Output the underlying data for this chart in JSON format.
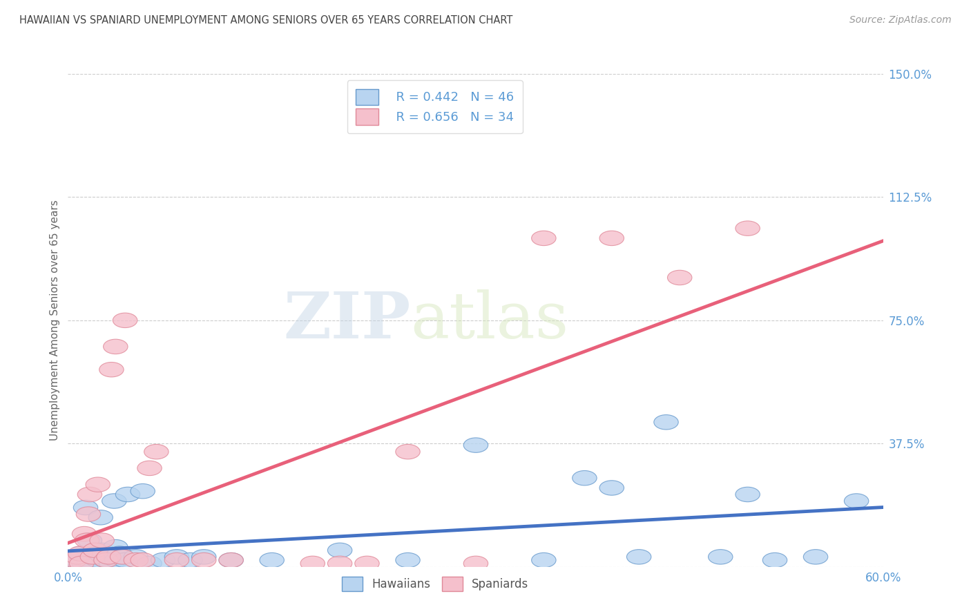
{
  "title": "HAWAIIAN VS SPANIARD UNEMPLOYMENT AMONG SENIORS OVER 65 YEARS CORRELATION CHART",
  "source": "Source: ZipAtlas.com",
  "ylabel": "Unemployment Among Seniors over 65 years",
  "xlim": [
    0.0,
    0.6
  ],
  "ylim": [
    0.0,
    1.5
  ],
  "yticks": [
    0.0,
    0.375,
    0.75,
    1.125,
    1.5
  ],
  "ytick_labels": [
    "",
    "37.5%",
    "75.0%",
    "112.5%",
    "150.0%"
  ],
  "xtick_labels": [
    "0.0%",
    "60.0%"
  ],
  "xticks": [
    0.0,
    0.6
  ],
  "hawaiian_fill": "#B8D4F0",
  "hawaiian_edge": "#6699CC",
  "spaniard_fill": "#F5C0CC",
  "spaniard_edge": "#E08898",
  "hawaiian_line": "#4472C4",
  "spaniard_line": "#E8607A",
  "legend_r_hawaiian": "R = 0.442",
  "legend_n_hawaiian": "N = 46",
  "legend_r_spaniard": "R = 0.656",
  "legend_n_spaniard": "N = 34",
  "watermark_zip": "ZIP",
  "watermark_atlas": "atlas",
  "background_color": "#FFFFFF",
  "grid_color": "#CCCCCC",
  "axis_tick_color": "#5B9BD5",
  "title_color": "#444444",
  "hawaiians_x": [
    0.005,
    0.007,
    0.009,
    0.01,
    0.012,
    0.013,
    0.015,
    0.016,
    0.018,
    0.02,
    0.022,
    0.024,
    0.025,
    0.027,
    0.028,
    0.03,
    0.032,
    0.034,
    0.035,
    0.036,
    0.038,
    0.04,
    0.042,
    0.044,
    0.05,
    0.055,
    0.06,
    0.07,
    0.08,
    0.09,
    0.1,
    0.12,
    0.15,
    0.2,
    0.25,
    0.3,
    0.35,
    0.38,
    0.4,
    0.42,
    0.44,
    0.48,
    0.5,
    0.52,
    0.55,
    0.58
  ],
  "hawaiians_y": [
    0.02,
    0.02,
    0.03,
    0.04,
    0.01,
    0.18,
    0.02,
    0.08,
    0.01,
    0.03,
    0.02,
    0.15,
    0.05,
    0.04,
    0.02,
    0.02,
    0.01,
    0.2,
    0.06,
    0.02,
    0.04,
    0.03,
    0.02,
    0.22,
    0.03,
    0.23,
    0.01,
    0.02,
    0.03,
    0.02,
    0.03,
    0.02,
    0.02,
    0.05,
    0.02,
    0.37,
    0.02,
    0.27,
    0.24,
    0.03,
    0.44,
    0.03,
    0.22,
    0.02,
    0.03,
    0.2
  ],
  "spaniards_x": [
    0.005,
    0.007,
    0.009,
    0.01,
    0.012,
    0.014,
    0.015,
    0.016,
    0.018,
    0.02,
    0.022,
    0.025,
    0.028,
    0.03,
    0.032,
    0.035,
    0.04,
    0.042,
    0.05,
    0.055,
    0.06,
    0.065,
    0.08,
    0.1,
    0.12,
    0.18,
    0.2,
    0.22,
    0.25,
    0.3,
    0.35,
    0.4,
    0.45,
    0.5
  ],
  "spaniards_y": [
    0.02,
    0.03,
    0.04,
    0.01,
    0.1,
    0.08,
    0.16,
    0.22,
    0.03,
    0.05,
    0.25,
    0.08,
    0.02,
    0.03,
    0.6,
    0.67,
    0.03,
    0.75,
    0.02,
    0.02,
    0.3,
    0.35,
    0.02,
    0.02,
    0.02,
    0.01,
    0.01,
    0.01,
    0.35,
    0.01,
    1.0,
    1.0,
    0.88,
    1.03
  ]
}
